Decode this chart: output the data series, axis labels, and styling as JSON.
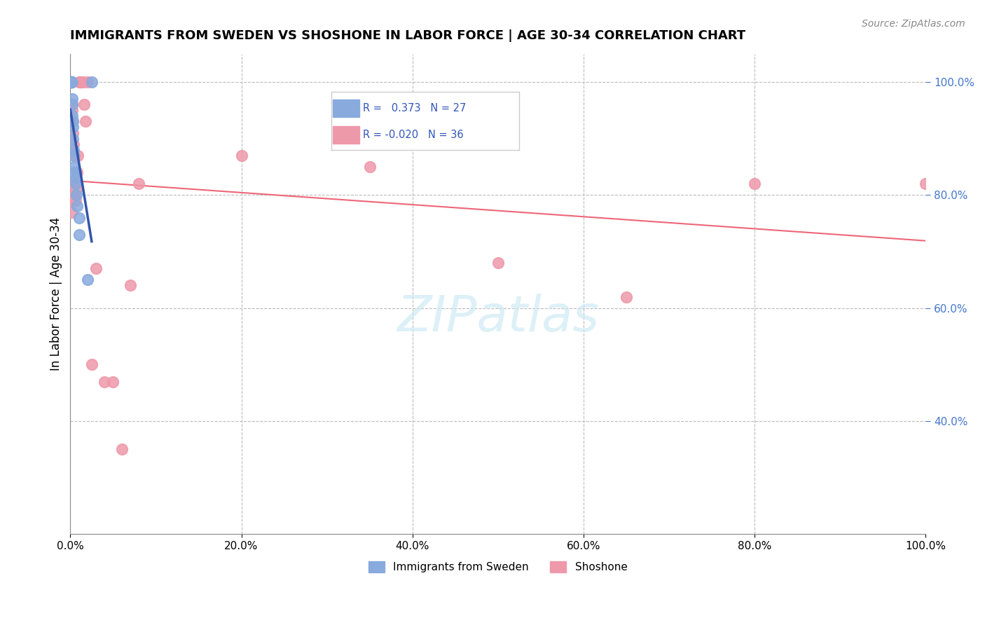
{
  "title": "IMMIGRANTS FROM SWEDEN VS SHOSHONE IN LABOR FORCE | AGE 30-34 CORRELATION CHART",
  "source": "Source: ZipAtlas.com",
  "ylabel": "In Labor Force | Age 30-34",
  "legend_label_blue": "Immigrants from Sweden",
  "legend_label_pink": "Shoshone",
  "blue_color": "#88aadd",
  "pink_color": "#ee99aa",
  "blue_line_color": "#3355aa",
  "pink_line_color": "#ee6677",
  "blue_points_x": [
    0.001,
    0.001,
    0.001,
    0.001,
    0.001,
    0.001,
    0.001,
    0.001,
    0.001,
    0.002,
    0.002,
    0.002,
    0.003,
    0.003,
    0.003,
    0.004,
    0.004,
    0.005,
    0.005,
    0.006,
    0.006,
    0.007,
    0.008,
    0.01,
    0.01,
    0.02,
    0.025
  ],
  "blue_points_y": [
    1.0,
    1.0,
    1.0,
    1.0,
    1.0,
    1.0,
    1.0,
    1.0,
    1.0,
    0.97,
    0.96,
    0.94,
    0.93,
    0.92,
    0.9,
    0.88,
    0.87,
    0.85,
    0.84,
    0.83,
    0.82,
    0.8,
    0.78,
    0.76,
    0.73,
    0.65,
    1.0
  ],
  "pink_points_x": [
    0.001,
    0.001,
    0.001,
    0.002,
    0.002,
    0.003,
    0.003,
    0.004,
    0.004,
    0.005,
    0.005,
    0.006,
    0.007,
    0.008,
    0.009,
    0.01,
    0.011,
    0.012,
    0.013,
    0.015,
    0.016,
    0.018,
    0.02,
    0.025,
    0.03,
    0.04,
    0.05,
    0.06,
    0.07,
    0.08,
    0.2,
    0.35,
    0.5,
    0.65,
    0.8,
    1.0
  ],
  "pink_points_y": [
    0.82,
    0.79,
    0.77,
    0.96,
    0.95,
    0.93,
    0.91,
    0.89,
    0.8,
    0.87,
    0.82,
    0.79,
    0.81,
    0.84,
    0.87,
    1.0,
    1.0,
    1.0,
    1.0,
    1.0,
    0.96,
    0.93,
    1.0,
    0.5,
    0.67,
    0.47,
    0.47,
    0.35,
    0.64,
    0.82,
    0.87,
    0.85,
    0.68,
    0.62,
    0.82,
    0.82
  ],
  "xlim": [
    0.0,
    1.0
  ],
  "ylim": [
    0.2,
    1.05
  ]
}
